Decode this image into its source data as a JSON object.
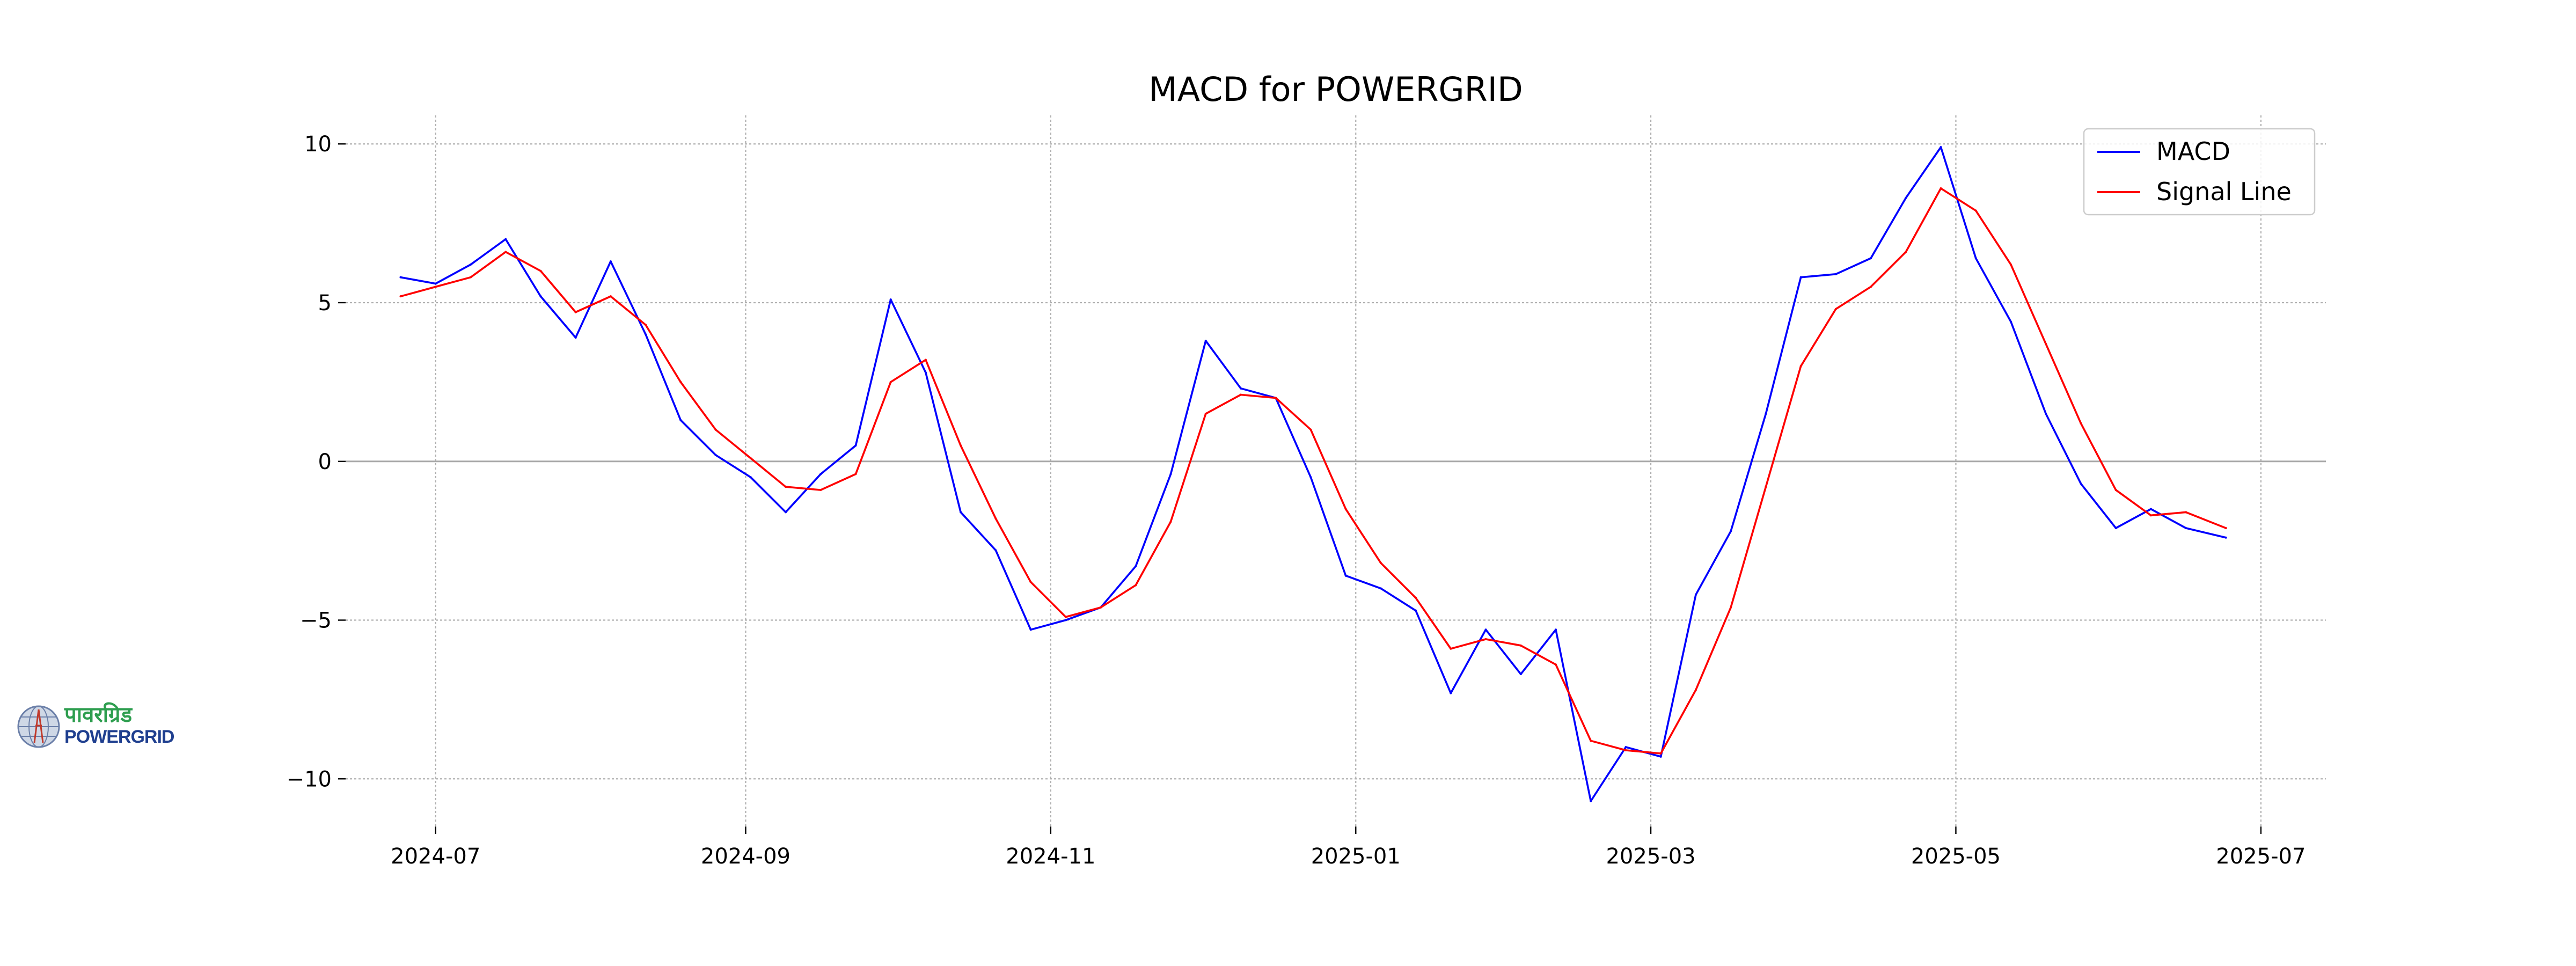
{
  "chart_data": {
    "type": "line",
    "title": "MACD for POWERGRID",
    "xlabel": "",
    "ylabel": "",
    "x_ticks": [
      "2024-07",
      "2024-09",
      "2024-11",
      "2025-01",
      "2025-03",
      "2025-05",
      "2025-07"
    ],
    "y_ticks": [
      10,
      5,
      0,
      -5,
      -10
    ],
    "y_tick_labels": [
      "10",
      "5",
      "0",
      "−5",
      "−10"
    ],
    "xlim": [
      "2024-06-13",
      "2025-07-14"
    ],
    "ylim": [
      -11.5,
      10.9
    ],
    "grid": true,
    "zero_line": true,
    "legend_position": "top-right",
    "x": [
      "2024-06-24",
      "2024-07-01",
      "2024-07-08",
      "2024-07-15",
      "2024-07-22",
      "2024-07-29",
      "2024-08-05",
      "2024-08-12",
      "2024-08-19",
      "2024-08-26",
      "2024-09-02",
      "2024-09-09",
      "2024-09-16",
      "2024-09-23",
      "2024-09-30",
      "2024-10-07",
      "2024-10-14",
      "2024-10-21",
      "2024-10-28",
      "2024-11-04",
      "2024-11-11",
      "2024-11-18",
      "2024-11-25",
      "2024-12-02",
      "2024-12-09",
      "2024-12-16",
      "2024-12-23",
      "2024-12-30",
      "2025-01-06",
      "2025-01-13",
      "2025-01-20",
      "2025-01-27",
      "2025-02-03",
      "2025-02-10",
      "2025-02-17",
      "2025-02-24",
      "2025-03-03",
      "2025-03-10",
      "2025-03-17",
      "2025-03-24",
      "2025-03-31",
      "2025-04-07",
      "2025-04-14",
      "2025-04-21",
      "2025-04-28",
      "2025-05-05",
      "2025-05-12",
      "2025-05-19",
      "2025-05-26",
      "2025-06-02",
      "2025-06-09",
      "2025-06-16",
      "2025-06-24"
    ],
    "series": [
      {
        "name": "MACD",
        "color": "#0000ff",
        "values": [
          5.8,
          5.6,
          6.2,
          7.0,
          5.2,
          3.9,
          6.3,
          4.0,
          1.3,
          0.2,
          -0.5,
          -1.6,
          -0.4,
          0.5,
          5.1,
          2.8,
          -1.6,
          -2.8,
          -5.3,
          -5.0,
          -4.6,
          -3.3,
          -0.4,
          3.8,
          2.3,
          2.0,
          -0.5,
          -3.6,
          -4.0,
          -4.7,
          -7.3,
          -5.3,
          -6.7,
          -5.3,
          -10.7,
          -9.0,
          -9.3,
          -4.2,
          -2.2,
          1.5,
          5.8,
          5.9,
          6.4,
          8.3,
          9.9,
          6.4,
          4.4,
          1.5,
          -0.7,
          -2.1,
          -1.5,
          -2.1,
          -2.4
        ]
      },
      {
        "name": "Signal Line",
        "color": "#ff0000",
        "values": [
          5.2,
          5.5,
          5.8,
          6.6,
          6.0,
          4.7,
          5.2,
          4.3,
          2.5,
          1.0,
          0.1,
          -0.8,
          -0.9,
          -0.4,
          2.5,
          3.2,
          0.5,
          -1.8,
          -3.8,
          -4.9,
          -4.6,
          -3.9,
          -1.9,
          1.5,
          2.1,
          2.0,
          1.0,
          -1.5,
          -3.2,
          -4.3,
          -5.9,
          -5.6,
          -5.8,
          -6.4,
          -8.8,
          -9.1,
          -9.2,
          -7.2,
          -4.6,
          -0.8,
          3.0,
          4.8,
          5.5,
          6.6,
          8.6,
          7.9,
          6.2,
          3.7,
          1.2,
          -0.9,
          -1.7,
          -1.6,
          -2.1
        ]
      }
    ]
  },
  "logo": {
    "devanagari": "पावरग्रिड",
    "latin": "POWERGRID"
  }
}
